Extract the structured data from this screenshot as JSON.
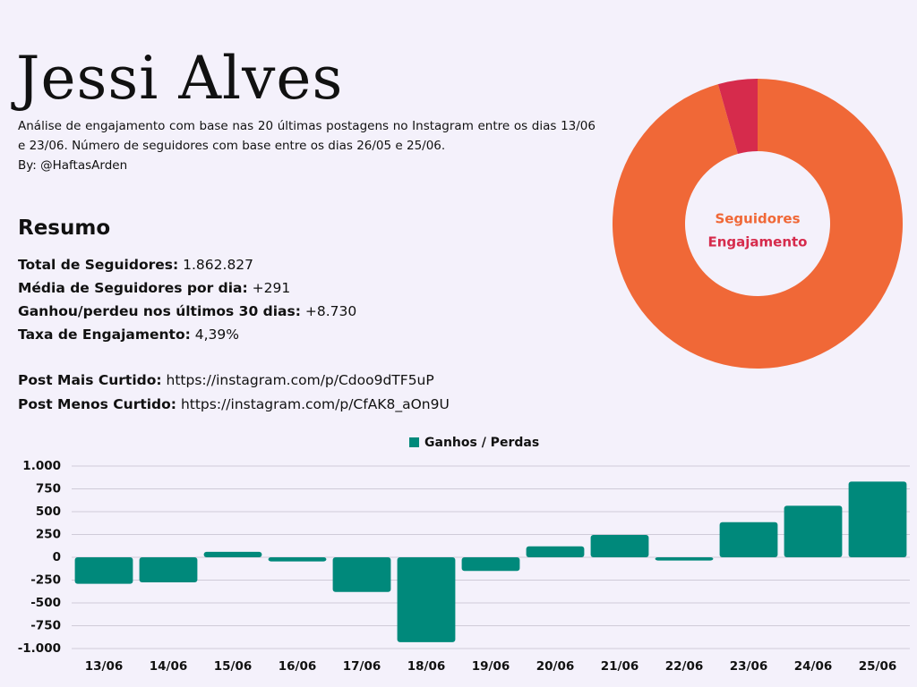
{
  "header": {
    "title": "Jessi Alves",
    "description": "Análise de engajamento com base nas 20 últimas postagens no Instagram entre os dias 13/06 e 23/06. Número de seguidores com base entre os dias 26/05 e 25/06.",
    "byline": "By: @HaftasArden"
  },
  "summary": {
    "heading": "Resumo",
    "items": [
      {
        "label": "Total de Seguidores:",
        "value": "1.862.827"
      },
      {
        "label": "Média de Seguidores por dia:",
        "value": "+291"
      },
      {
        "label": "Ganhou/perdeu nos últimos 30 dias:",
        "value": "+8.730"
      },
      {
        "label": "Taxa de Engajamento:",
        "value": "4,39%"
      }
    ],
    "links": [
      {
        "label": "Post Mais Curtido:",
        "value": "https://instagram.com/p/Cdoo9dTF5uP"
      },
      {
        "label": "Post Menos Curtido:",
        "value": "https://instagram.com/p/CfAK8_aOn9U"
      }
    ]
  },
  "chart_data": [
    {
      "type": "pie",
      "variant": "donut",
      "labels": [
        "Seguidores",
        "Engajamento"
      ],
      "values": [
        95.61,
        4.39
      ],
      "colors": [
        "#f06837",
        "#d62b4c"
      ],
      "legend_position": "center"
    },
    {
      "type": "bar",
      "categories": [
        "13/06",
        "14/06",
        "15/06",
        "16/06",
        "17/06",
        "18/06",
        "19/06",
        "20/06",
        "21/06",
        "22/06",
        "23/06",
        "24/06",
        "25/06"
      ],
      "series": [
        {
          "name": "Ganhos / Perdas",
          "values": [
            -290,
            -275,
            60,
            -45,
            -380,
            -930,
            -150,
            120,
            245,
            -35,
            385,
            565,
            830
          ],
          "color": "#00897b"
        }
      ],
      "ylim": [
        -1000,
        1000
      ],
      "yticks": [
        1000,
        750,
        500,
        250,
        0,
        -250,
        -500,
        -750,
        -1000
      ],
      "ytick_labels": [
        "1.000",
        "750",
        "500",
        "250",
        "0",
        "-250",
        "-500",
        "-750",
        "-1.000"
      ],
      "grid": true,
      "legend_position": "top-center"
    }
  ]
}
